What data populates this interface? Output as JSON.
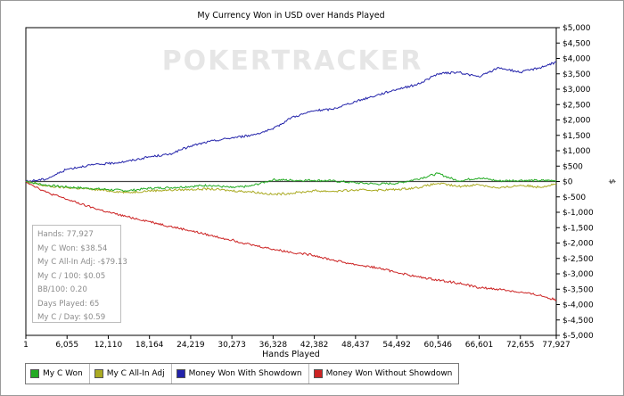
{
  "chart_data": {
    "type": "line",
    "title": "My Currency Won in USD over Hands Played",
    "xlabel": "Hands Played",
    "ylabel": "$",
    "xlim": [
      1,
      77927
    ],
    "ylim": [
      -5000,
      5000
    ],
    "x_ticks": [
      "1",
      "6,055",
      "12,110",
      "18,164",
      "24,219",
      "30,273",
      "36,328",
      "42,382",
      "48,437",
      "54,492",
      "60,546",
      "66,601",
      "72,655",
      "77,927"
    ],
    "y_ticks": [
      "$5,000",
      "$4,500",
      "$4,000",
      "$3,500",
      "$3,000",
      "$2,500",
      "$2,000",
      "$1,500",
      "$1,000",
      "$500",
      "$0",
      "$-500",
      "$-1,000",
      "$-1,500",
      "$-2,000",
      "$-2,500",
      "$-3,000",
      "$-3,500",
      "$-4,000",
      "$-4,500",
      "$-5,000"
    ],
    "y_axis_side": "right",
    "grid": false,
    "legend_position": "bottom",
    "watermark": "POKERTRACKER",
    "series": [
      {
        "name": "My C Won",
        "color": "#22aa22",
        "x": [
          1,
          3000,
          6055,
          9000,
          12110,
          15000,
          18164,
          21000,
          24219,
          27000,
          30273,
          33000,
          36328,
          39000,
          42382,
          45000,
          48437,
          51500,
          54492,
          57500,
          60546,
          63500,
          66601,
          69500,
          72655,
          75500,
          77927
        ],
        "y": [
          0,
          -120,
          -180,
          -220,
          -260,
          -300,
          -220,
          -200,
          -160,
          -120,
          -200,
          -150,
          60,
          40,
          40,
          20,
          -40,
          -80,
          -60,
          80,
          260,
          20,
          120,
          20,
          40,
          30,
          39
        ]
      },
      {
        "name": "My C All-In Adj",
        "color": "#aaaa22",
        "x": [
          1,
          3000,
          6055,
          9000,
          12110,
          15000,
          18164,
          21000,
          24219,
          27000,
          30273,
          33000,
          36328,
          39000,
          42382,
          45000,
          48437,
          51500,
          54492,
          57500,
          60546,
          63500,
          66601,
          69500,
          72655,
          75500,
          77927
        ],
        "y": [
          0,
          -150,
          -200,
          -240,
          -300,
          -360,
          -300,
          -280,
          -260,
          -240,
          -300,
          -330,
          -420,
          -380,
          -300,
          -320,
          -280,
          -280,
          -260,
          -200,
          -60,
          -160,
          -100,
          -220,
          -120,
          -180,
          -79
        ]
      },
      {
        "name": "Money Won With Showdown",
        "color": "#2222aa",
        "x": [
          1,
          3000,
          6055,
          9000,
          12110,
          15000,
          18164,
          21000,
          24219,
          27000,
          30273,
          33000,
          36328,
          39000,
          42382,
          45000,
          48437,
          51500,
          54492,
          57500,
          60546,
          63500,
          66601,
          69500,
          72655,
          75500,
          77927
        ],
        "y": [
          0,
          80,
          400,
          520,
          580,
          660,
          800,
          880,
          1150,
          1300,
          1420,
          1500,
          1700,
          2080,
          2300,
          2350,
          2600,
          2800,
          3000,
          3150,
          3500,
          3550,
          3400,
          3700,
          3550,
          3700,
          3880
        ]
      },
      {
        "name": "Money Won Without Showdown",
        "color": "#cc2222",
        "x": [
          1,
          3000,
          6055,
          9000,
          12110,
          15000,
          18164,
          21000,
          24219,
          27000,
          30273,
          33000,
          36328,
          39000,
          42382,
          45000,
          48437,
          51500,
          54492,
          57500,
          60546,
          63500,
          66601,
          69500,
          72655,
          75500,
          77927
        ],
        "y": [
          0,
          -350,
          -580,
          -800,
          -1000,
          -1150,
          -1300,
          -1450,
          -1600,
          -1750,
          -1900,
          -2050,
          -2200,
          -2300,
          -2400,
          -2550,
          -2700,
          -2800,
          -2950,
          -3100,
          -3200,
          -3300,
          -3450,
          -3500,
          -3600,
          -3700,
          -3850
        ]
      }
    ]
  },
  "stats": {
    "hands": "Hands: 77,927",
    "c_won": "My C Won: $38.54",
    "all_in_adj": "My C All-In Adj: -$79.13",
    "c_per_100": "My C / 100: $0.05",
    "bb_per_100": "BB/100: 0.20",
    "days_played": "Days Played: 65",
    "c_per_day": "My C / Day: $0.59"
  }
}
